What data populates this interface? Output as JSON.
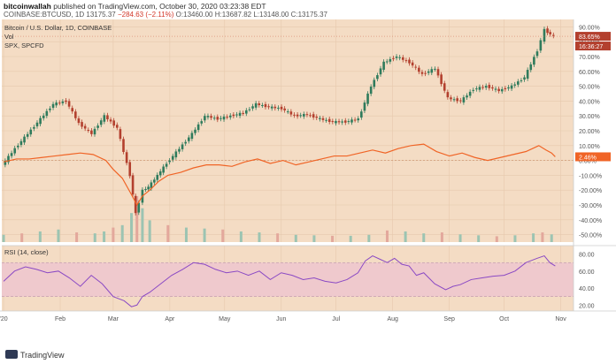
{
  "header": {
    "publisher": "bitcoinwallah",
    "published_text": "published on TradingView.com, October 30, 2020 03:23:38 EDT",
    "symbol": "COINBASE:BTCUSD, 1D",
    "close": "13175.37",
    "change": "−284.63 (−2.11%)",
    "open": "O:13460.00",
    "high": "H:13687.82",
    "low": "L:13148.00",
    "close_label": "C:13175.37"
  },
  "footer": {
    "brand": "TradingView"
  },
  "colors": {
    "bg": "#f4dcc4",
    "up": "#2f7b5c",
    "down": "#b3402e",
    "spx": "#f06426",
    "rsi": "#8a49c4",
    "rsi_band": "#efc9cd",
    "axis_text": "#555555"
  },
  "chart_data": [
    {
      "type": "line",
      "title": "Bitcoin / U.S. Dollar, 1D, COINBASE",
      "comparison_legend": "SPX, SPCFD",
      "volume_legend": "Vol",
      "y_unit": "% change",
      "ylim": [
        -55,
        95
      ],
      "yticks": [
        "90.00%",
        "80.00%",
        "70.00%",
        "60.00%",
        "50.00%",
        "40.00%",
        "30.00%",
        "20.00%",
        "10.00%",
        "0.00%",
        "-10.00%",
        "-20.00%",
        "-30.00%",
        "-40.00%",
        "-50.00%"
      ],
      "ytick_values": [
        90,
        80,
        70,
        60,
        50,
        40,
        30,
        20,
        10,
        0,
        -10,
        -20,
        -30,
        -40,
        -50
      ],
      "xticks": [
        "'20",
        "Feb",
        "Mar",
        "Apr",
        "May",
        "Jun",
        "Jul",
        "Aug",
        "Sep",
        "Oct",
        "Nov"
      ],
      "xtick_days": [
        0,
        31,
        60,
        91,
        121,
        152,
        182,
        213,
        244,
        274,
        305
      ],
      "price_label": "83.65%",
      "countdown_label": "16:36:27",
      "spx_label": "2.46%",
      "series": [
        {
          "name": "BTCUSD",
          "x_days": [
            0,
            7,
            14,
            21,
            28,
            35,
            42,
            49,
            56,
            63,
            70,
            73,
            75,
            77,
            80,
            85,
            90,
            97,
            104,
            111,
            118,
            125,
            132,
            139,
            146,
            153,
            160,
            167,
            174,
            181,
            188,
            195,
            202,
            209,
            216,
            223,
            230,
            237,
            244,
            251,
            258,
            265,
            272,
            279,
            286,
            293,
            297,
            300,
            302
          ],
          "values": [
            -3,
            8,
            18,
            28,
            38,
            40,
            25,
            18,
            30,
            22,
            -10,
            -36,
            -28,
            -20,
            -18,
            -10,
            -2,
            8,
            18,
            30,
            28,
            30,
            32,
            38,
            36,
            35,
            30,
            31,
            28,
            26,
            26,
            28,
            50,
            66,
            70,
            66,
            58,
            62,
            42,
            40,
            48,
            50,
            47,
            50,
            56,
            74,
            88,
            85,
            83.65
          ]
        },
        {
          "name": "SPX",
          "x_days": [
            0,
            7,
            14,
            21,
            28,
            35,
            42,
            49,
            56,
            60,
            65,
            70,
            73,
            76,
            80,
            85,
            90,
            97,
            104,
            111,
            118,
            125,
            132,
            139,
            146,
            153,
            160,
            167,
            174,
            181,
            188,
            195,
            202,
            209,
            216,
            223,
            230,
            237,
            244,
            251,
            258,
            265,
            272,
            279,
            286,
            293,
            297,
            300,
            302
          ],
          "values": [
            -1,
            1,
            1,
            2,
            3,
            4,
            5,
            4,
            0,
            -6,
            -12,
            -23,
            -30,
            -24,
            -20,
            -14,
            -10,
            -8,
            -5,
            -3,
            -3,
            -4,
            -1,
            1,
            -2,
            0,
            -3,
            -1,
            1,
            3,
            3,
            5,
            7,
            5,
            8,
            10,
            11,
            6,
            3,
            5,
            2,
            0,
            2,
            4,
            6,
            10,
            7,
            5,
            2.46
          ]
        }
      ]
    },
    {
      "type": "bar",
      "title": "Vol",
      "x_days": [
        0,
        10,
        20,
        30,
        40,
        50,
        55,
        60,
        65,
        70,
        73,
        76,
        80,
        90,
        100,
        110,
        120,
        130,
        140,
        150,
        160,
        170,
        180,
        190,
        200,
        210,
        220,
        230,
        240,
        250,
        260,
        270,
        280,
        290,
        295,
        300
      ],
      "values": [
        15,
        18,
        22,
        26,
        20,
        18,
        22,
        30,
        35,
        60,
        95,
        70,
        45,
        35,
        30,
        28,
        26,
        22,
        20,
        18,
        15,
        14,
        13,
        13,
        15,
        24,
        22,
        18,
        20,
        16,
        14,
        12,
        14,
        18,
        20,
        16
      ]
    },
    {
      "type": "line",
      "title": "RSI (14, close)",
      "ylim": [
        13,
        90
      ],
      "yticks": [
        "80.00",
        "60.00",
        "40.00",
        "20.00"
      ],
      "ytick_values": [
        80,
        60,
        40,
        20
      ],
      "band": [
        30,
        70
      ],
      "series": [
        {
          "name": "RSI",
          "x_days": [
            0,
            6,
            12,
            18,
            24,
            30,
            36,
            42,
            48,
            54,
            60,
            66,
            70,
            73,
            76,
            80,
            86,
            92,
            98,
            104,
            110,
            116,
            122,
            128,
            134,
            140,
            146,
            152,
            158,
            164,
            170,
            176,
            182,
            188,
            194,
            198,
            202,
            206,
            210,
            214,
            218,
            222,
            226,
            230,
            236,
            242,
            246,
            250,
            256,
            262,
            268,
            274,
            280,
            286,
            292,
            296,
            299,
            302
          ],
          "values": [
            48,
            60,
            65,
            62,
            58,
            60,
            52,
            42,
            55,
            45,
            30,
            25,
            18,
            20,
            30,
            35,
            45,
            55,
            62,
            70,
            68,
            62,
            58,
            60,
            55,
            60,
            50,
            58,
            55,
            50,
            52,
            48,
            46,
            50,
            58,
            72,
            78,
            74,
            70,
            75,
            68,
            66,
            55,
            58,
            45,
            38,
            42,
            44,
            50,
            52,
            54,
            55,
            60,
            70,
            75,
            78,
            70,
            66
          ]
        }
      ]
    }
  ]
}
